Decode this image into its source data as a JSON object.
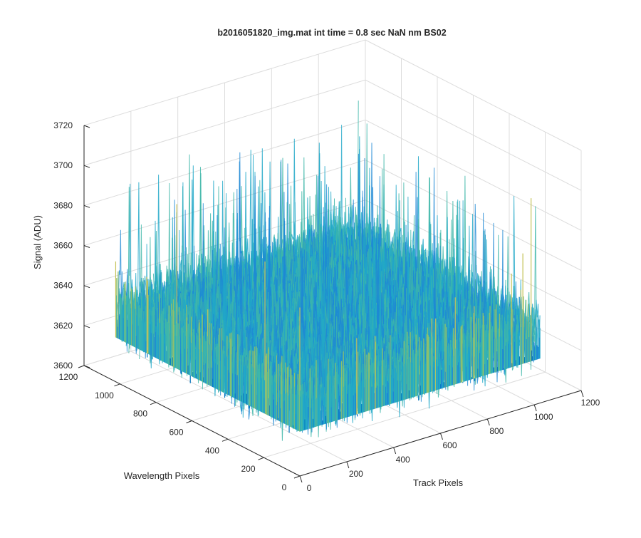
{
  "chart_data": {
    "type": "surface3d",
    "title": "b2016051820_img.mat int time = 0.8 sec  NaN nm BS02",
    "xlabel": "Track Pixels",
    "ylabel": "Wavelength Pixels",
    "zlabel": "Signal (ADU)",
    "xlim": [
      0,
      1200
    ],
    "ylim": [
      0,
      1200
    ],
    "zlim": [
      3600,
      3720
    ],
    "x_ticks": [
      "0",
      "200",
      "400",
      "600",
      "800",
      "1000",
      "1200"
    ],
    "y_ticks": [
      "0",
      "200",
      "400",
      "600",
      "800",
      "1000",
      "1200"
    ],
    "z_ticks": [
      "3600",
      "3620",
      "3640",
      "3660",
      "3680",
      "3700",
      "3720"
    ],
    "data_extent": {
      "x": [
        0,
        1024
      ],
      "y": [
        0,
        1024
      ]
    },
    "signal": {
      "mean": 3635,
      "spread": 8,
      "min": 3618,
      "max": 3705
    },
    "grid": true,
    "colormap": [
      "#0072bd",
      "#1e88d4",
      "#21a8c8",
      "#3fb7a9",
      "#8cc06e",
      "#c5c35a"
    ]
  }
}
